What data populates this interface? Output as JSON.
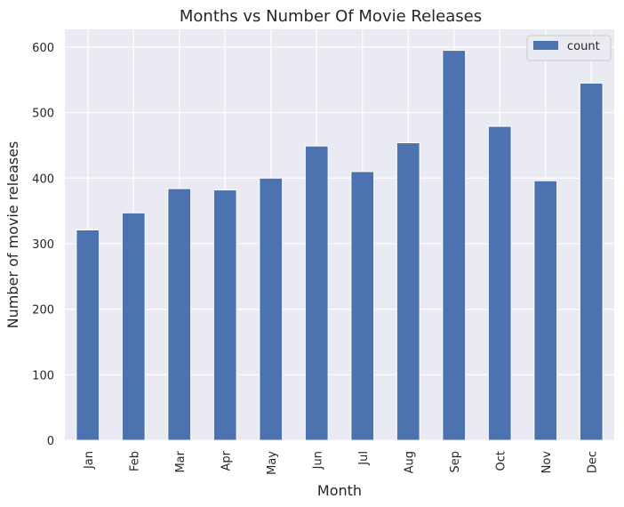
{
  "chart_data": {
    "type": "bar",
    "title": "Months vs Number Of Movie Releases",
    "xlabel": "Month",
    "ylabel": "Number of movie releases",
    "categories": [
      "Jan",
      "Feb",
      "Mar",
      "Apr",
      "May",
      "Jun",
      "Jul",
      "Aug",
      "Sep",
      "Oct",
      "Nov",
      "Dec"
    ],
    "series": [
      {
        "name": "count",
        "values": [
          321,
          347,
          384,
          382,
          400,
          449,
          410,
          454,
          595,
          479,
          396,
          545
        ],
        "color": "#4c72b0"
      }
    ],
    "ylim": [
      0,
      627
    ],
    "yticks": [
      0,
      100,
      200,
      300,
      400,
      500,
      600
    ],
    "grid": true,
    "legend_position": "top-right",
    "colors": {
      "plot_background": "#eaeaf2",
      "grid": "#ffffff",
      "text": "#262626"
    }
  }
}
